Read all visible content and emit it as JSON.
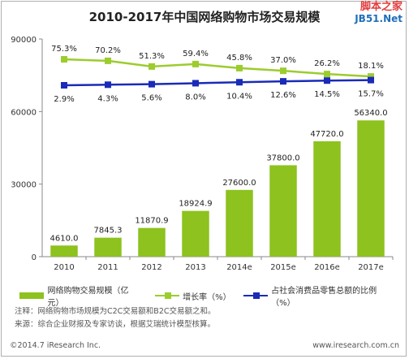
{
  "watermark": {
    "line1": "脚本之家",
    "line2": "JB51.Net"
  },
  "chart_data": {
    "type": "bar",
    "title": "2010-2017年中国网络购物市场交易规模",
    "categories": [
      "2010",
      "2011",
      "2012",
      "2013",
      "2014e",
      "2015e",
      "2016e",
      "2017e"
    ],
    "series": [
      {
        "name": "网络购物交易规模（亿元）",
        "type": "bar",
        "axis": "left",
        "values": [
          4610.0,
          7845.3,
          11870.9,
          18924.9,
          27600.0,
          37800.0,
          47720.0,
          56340.0
        ],
        "labels": [
          "4610.0",
          "7845.3",
          "11870.9",
          "18924.9",
          "27600.0",
          "37800.0",
          "47720.0",
          "56340.0"
        ]
      },
      {
        "name": "增长率（%）",
        "type": "line",
        "axis": "right",
        "values": [
          75.3,
          70.2,
          51.3,
          59.4,
          45.8,
          37.0,
          26.2,
          18.1
        ],
        "labels": [
          "75.3%",
          "70.2%",
          "51.3%",
          "59.4%",
          "45.8%",
          "37.0%",
          "26.2%",
          "18.1%"
        ]
      },
      {
        "name": "占社会消费品零售总额的比例（%）",
        "type": "line",
        "axis": "right",
        "values": [
          2.9,
          4.3,
          5.6,
          8.0,
          10.4,
          12.6,
          14.5,
          15.7
        ],
        "labels": [
          "2.9%",
          "4.3%",
          "5.6%",
          "8.0%",
          "10.4%",
          "12.6%",
          "14.5%",
          "15.7%"
        ]
      }
    ],
    "ylim": [
      0,
      90000
    ],
    "yticks": [
      "0",
      "30000",
      "60000",
      "90000"
    ],
    "ytick_values": [
      0,
      30000,
      60000,
      90000
    ],
    "colors": {
      "bar": "#8dc21f",
      "growth": "#9ccc2e",
      "share": "#1a2bb8",
      "axis": "#888888"
    },
    "legend_position": "bottom"
  },
  "notes": [
    "注释：网络购物市场规模为C2C交易额和B2C交易额之和。",
    "来源：综合企业财报及专家访谈，根据艾瑞统计模型核算。"
  ],
  "footer": {
    "copyright": "©2014.7 iResearch Inc.",
    "site": "www.iresearch.com.cn"
  }
}
